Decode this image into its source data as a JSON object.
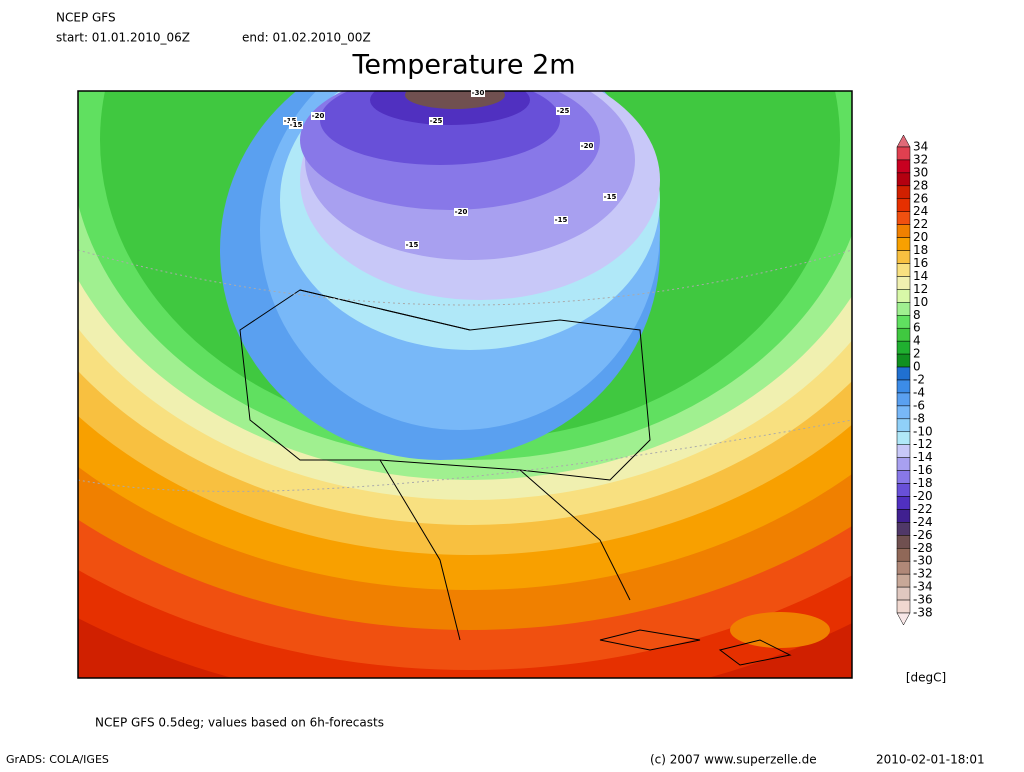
{
  "header": {
    "model": "NCEP GFS",
    "start": "start: 01.01.2010_06Z",
    "end": "end: 01.02.2010_00Z",
    "title": "Temperature 2m"
  },
  "map": {
    "contour_labels": [
      "-15",
      "-20",
      "-25",
      "-30",
      "-25",
      "-20",
      "-20",
      "-15",
      "-15",
      "-15",
      "-15"
    ]
  },
  "colorbar": {
    "levels": [
      34,
      32,
      30,
      28,
      26,
      24,
      22,
      20,
      18,
      16,
      14,
      12,
      10,
      8,
      6,
      4,
      2,
      0,
      -2,
      -4,
      -6,
      -8,
      -10,
      -12,
      -14,
      -16,
      -18,
      -20,
      -22,
      -24,
      -26,
      -28,
      -30,
      -32,
      -34,
      -36,
      -38
    ],
    "colors": [
      "#e06a78",
      "#e04050",
      "#c80020",
      "#b40010",
      "#d02000",
      "#e63000",
      "#f05010",
      "#f08000",
      "#f8a000",
      "#f8c040",
      "#f8e080",
      "#f0f0b0",
      "#d8f8a8",
      "#a0f090",
      "#60e060",
      "#40c840",
      "#20b030",
      "#109020",
      "#2070d0",
      "#3c8ce8",
      "#5aa0f0",
      "#78b8f8",
      "#90d0f8",
      "#b0e8f8",
      "#c8c8f8",
      "#a8a0f0",
      "#8878e8",
      "#6850d8",
      "#5030c0",
      "#402090",
      "#503868",
      "#705050",
      "#906858",
      "#b08878",
      "#c8a898",
      "#e0c8c0",
      "#f0d8d0",
      "#f8e8e8"
    ],
    "unit": "[degC]"
  },
  "footer": {
    "note": "NCEP GFS 0.5deg; values based on 6h-forecasts",
    "software": "GrADS: COLA/IGES",
    "copyright": "(c) 2007 www.superzelle.de",
    "timestamp": "2010-02-01-18:01"
  }
}
